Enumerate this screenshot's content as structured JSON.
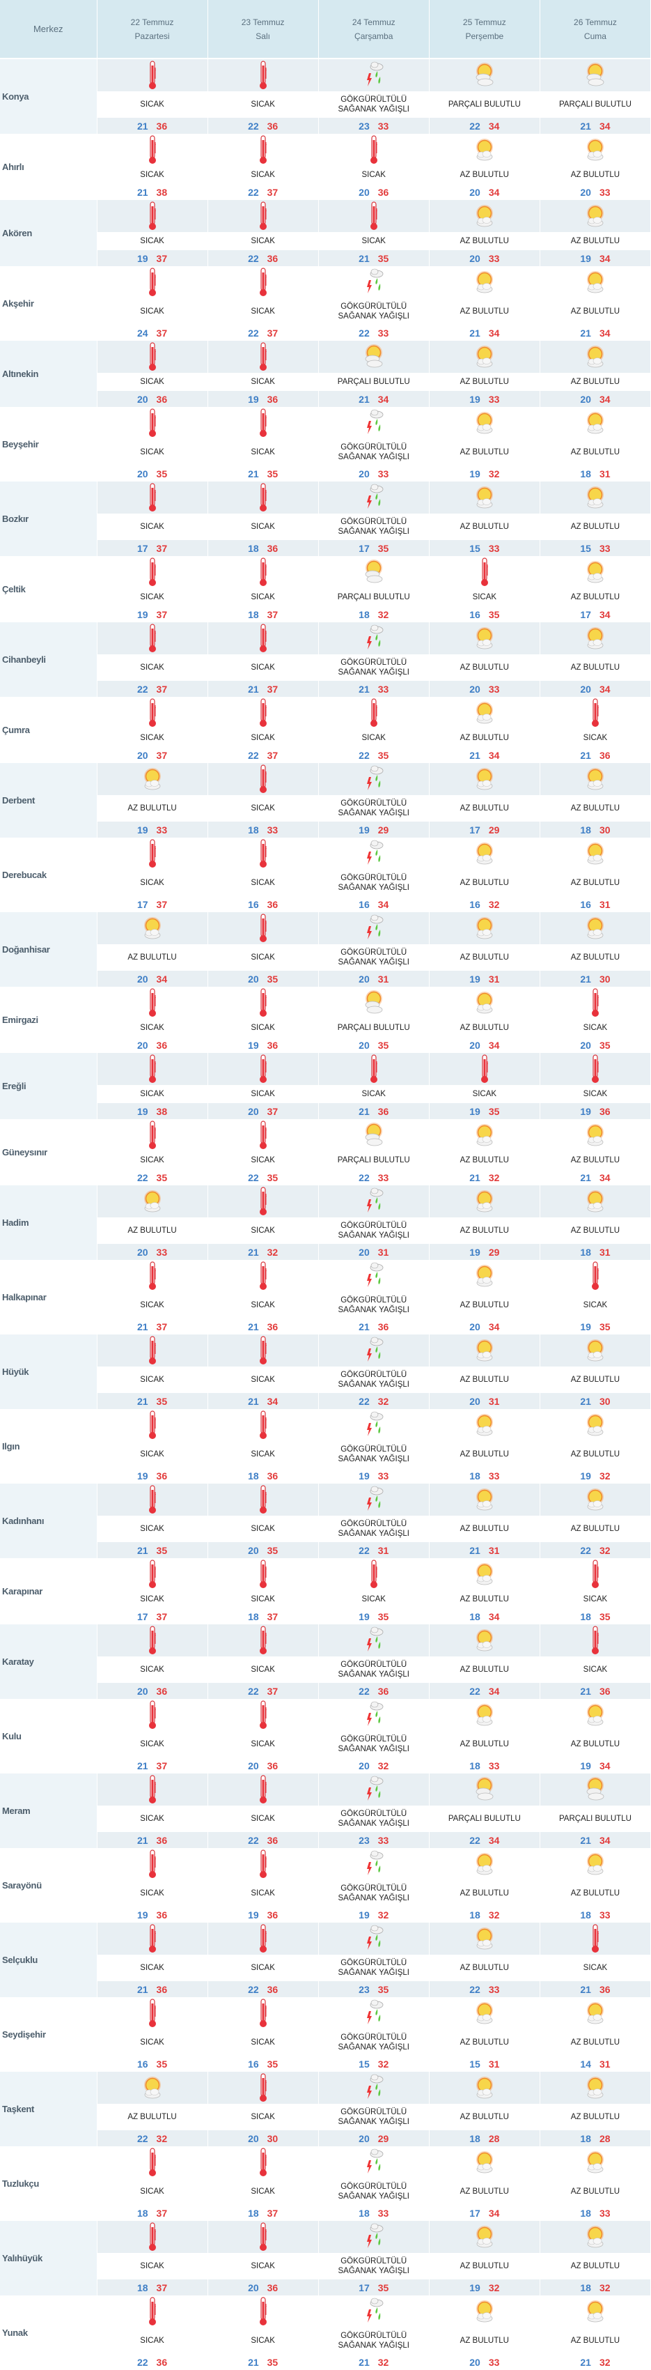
{
  "header": {
    "merkez": "Merkez",
    "days": [
      {
        "date": "22 Temmuz",
        "weekday": "Pazartesi"
      },
      {
        "date": "23 Temmuz",
        "weekday": "Salı"
      },
      {
        "date": "24 Temmuz",
        "weekday": "Çarşamba"
      },
      {
        "date": "25 Temmuz",
        "weekday": "Perşembe"
      },
      {
        "date": "26 Temmuz",
        "weekday": "Cuma"
      }
    ]
  },
  "conditions": {
    "S": {
      "label": "SICAK",
      "icon": "thermometer-icon"
    },
    "A": {
      "label": "AZ BULUTLU",
      "icon": "sun-cloud-icon"
    },
    "P": {
      "label": "PARÇALI BULUTLU",
      "icon": "partly-cloudy-icon"
    },
    "G": {
      "label": "GÖKGÜRÜLTÜLÜ SAĞANAK YAĞIŞLI",
      "icon": "thunderstorm-icon"
    }
  },
  "colors": {
    "min_temp": "#3f7fc6",
    "max_temp": "#e23b3b",
    "header_bg": "#d6e9f0",
    "row_shade": "#e8eff3"
  },
  "rows": [
    {
      "name": "Konya",
      "days": [
        [
          "S",
          21,
          36
        ],
        [
          "S",
          22,
          36
        ],
        [
          "G",
          23,
          33
        ],
        [
          "P",
          22,
          34
        ],
        [
          "P",
          21,
          34
        ]
      ]
    },
    {
      "name": "Ahırlı",
      "days": [
        [
          "S",
          21,
          38
        ],
        [
          "S",
          22,
          37
        ],
        [
          "S",
          20,
          36
        ],
        [
          "A",
          20,
          34
        ],
        [
          "A",
          20,
          33
        ]
      ]
    },
    {
      "name": "Akören",
      "days": [
        [
          "S",
          19,
          37
        ],
        [
          "S",
          22,
          36
        ],
        [
          "S",
          21,
          35
        ],
        [
          "A",
          20,
          33
        ],
        [
          "A",
          19,
          34
        ]
      ]
    },
    {
      "name": "Akşehir",
      "days": [
        [
          "S",
          24,
          37
        ],
        [
          "S",
          22,
          37
        ],
        [
          "G",
          22,
          33
        ],
        [
          "A",
          21,
          34
        ],
        [
          "A",
          21,
          34
        ]
      ]
    },
    {
      "name": "Altınekin",
      "days": [
        [
          "S",
          20,
          36
        ],
        [
          "S",
          19,
          36
        ],
        [
          "P",
          21,
          34
        ],
        [
          "A",
          19,
          33
        ],
        [
          "A",
          20,
          34
        ]
      ]
    },
    {
      "name": "Beyşehir",
      "days": [
        [
          "S",
          20,
          35
        ],
        [
          "S",
          21,
          35
        ],
        [
          "G",
          20,
          33
        ],
        [
          "A",
          19,
          32
        ],
        [
          "A",
          18,
          31
        ]
      ]
    },
    {
      "name": "Bozkır",
      "days": [
        [
          "S",
          17,
          37
        ],
        [
          "S",
          18,
          36
        ],
        [
          "G",
          17,
          35
        ],
        [
          "A",
          15,
          33
        ],
        [
          "A",
          15,
          33
        ]
      ]
    },
    {
      "name": "Çeltik",
      "days": [
        [
          "S",
          19,
          37
        ],
        [
          "S",
          18,
          37
        ],
        [
          "P",
          18,
          32
        ],
        [
          "S",
          16,
          35
        ],
        [
          "A",
          17,
          34
        ]
      ]
    },
    {
      "name": "Cihanbeyli",
      "days": [
        [
          "S",
          22,
          37
        ],
        [
          "S",
          21,
          37
        ],
        [
          "G",
          21,
          33
        ],
        [
          "A",
          20,
          33
        ],
        [
          "A",
          20,
          34
        ]
      ]
    },
    {
      "name": "Çumra",
      "days": [
        [
          "S",
          20,
          37
        ],
        [
          "S",
          22,
          37
        ],
        [
          "S",
          22,
          35
        ],
        [
          "A",
          21,
          34
        ],
        [
          "S",
          21,
          36
        ]
      ]
    },
    {
      "name": "Derbent",
      "days": [
        [
          "A",
          19,
          33
        ],
        [
          "S",
          18,
          33
        ],
        [
          "G",
          19,
          29
        ],
        [
          "A",
          17,
          29
        ],
        [
          "A",
          18,
          30
        ]
      ]
    },
    {
      "name": "Derebucak",
      "days": [
        [
          "S",
          17,
          37
        ],
        [
          "S",
          16,
          36
        ],
        [
          "G",
          16,
          34
        ],
        [
          "A",
          16,
          32
        ],
        [
          "A",
          16,
          31
        ]
      ]
    },
    {
      "name": "Doğanhisar",
      "days": [
        [
          "A",
          20,
          34
        ],
        [
          "S",
          20,
          35
        ],
        [
          "G",
          20,
          31
        ],
        [
          "A",
          19,
          31
        ],
        [
          "A",
          21,
          30
        ]
      ]
    },
    {
      "name": "Emirgazi",
      "days": [
        [
          "S",
          20,
          36
        ],
        [
          "S",
          19,
          36
        ],
        [
          "P",
          20,
          35
        ],
        [
          "A",
          20,
          34
        ],
        [
          "S",
          20,
          35
        ]
      ]
    },
    {
      "name": "Ereğli",
      "days": [
        [
          "S",
          19,
          38
        ],
        [
          "S",
          20,
          37
        ],
        [
          "S",
          21,
          36
        ],
        [
          "S",
          19,
          35
        ],
        [
          "S",
          19,
          36
        ]
      ]
    },
    {
      "name": "Güneysınır",
      "days": [
        [
          "S",
          22,
          35
        ],
        [
          "S",
          22,
          35
        ],
        [
          "P",
          22,
          33
        ],
        [
          "A",
          21,
          32
        ],
        [
          "A",
          21,
          34
        ]
      ]
    },
    {
      "name": "Hadim",
      "days": [
        [
          "A",
          20,
          33
        ],
        [
          "S",
          21,
          32
        ],
        [
          "G",
          20,
          31
        ],
        [
          "A",
          19,
          29
        ],
        [
          "A",
          18,
          31
        ]
      ]
    },
    {
      "name": "Halkapınar",
      "days": [
        [
          "S",
          21,
          37
        ],
        [
          "S",
          21,
          36
        ],
        [
          "G",
          21,
          36
        ],
        [
          "A",
          20,
          34
        ],
        [
          "S",
          19,
          35
        ]
      ]
    },
    {
      "name": "Hüyük",
      "days": [
        [
          "S",
          21,
          35
        ],
        [
          "S",
          21,
          34
        ],
        [
          "G",
          22,
          32
        ],
        [
          "A",
          20,
          31
        ],
        [
          "A",
          21,
          30
        ]
      ]
    },
    {
      "name": "Ilgın",
      "days": [
        [
          "S",
          19,
          36
        ],
        [
          "S",
          18,
          36
        ],
        [
          "G",
          19,
          33
        ],
        [
          "A",
          18,
          33
        ],
        [
          "A",
          19,
          32
        ]
      ]
    },
    {
      "name": "Kadınhanı",
      "days": [
        [
          "S",
          21,
          35
        ],
        [
          "S",
          20,
          35
        ],
        [
          "G",
          22,
          31
        ],
        [
          "A",
          21,
          31
        ],
        [
          "A",
          22,
          32
        ]
      ]
    },
    {
      "name": "Karapınar",
      "days": [
        [
          "S",
          17,
          37
        ],
        [
          "S",
          18,
          37
        ],
        [
          "S",
          19,
          35
        ],
        [
          "A",
          18,
          34
        ],
        [
          "S",
          18,
          35
        ]
      ]
    },
    {
      "name": "Karatay",
      "days": [
        [
          "S",
          20,
          36
        ],
        [
          "S",
          22,
          37
        ],
        [
          "G",
          22,
          36
        ],
        [
          "A",
          22,
          34
        ],
        [
          "S",
          21,
          36
        ]
      ]
    },
    {
      "name": "Kulu",
      "days": [
        [
          "S",
          21,
          37
        ],
        [
          "S",
          20,
          36
        ],
        [
          "G",
          20,
          32
        ],
        [
          "A",
          18,
          33
        ],
        [
          "A",
          19,
          34
        ]
      ]
    },
    {
      "name": "Meram",
      "days": [
        [
          "S",
          21,
          36
        ],
        [
          "S",
          22,
          36
        ],
        [
          "G",
          23,
          33
        ],
        [
          "P",
          22,
          34
        ],
        [
          "P",
          21,
          34
        ]
      ]
    },
    {
      "name": "Sarayönü",
      "days": [
        [
          "S",
          19,
          36
        ],
        [
          "S",
          19,
          36
        ],
        [
          "G",
          19,
          32
        ],
        [
          "A",
          18,
          32
        ],
        [
          "A",
          18,
          33
        ]
      ]
    },
    {
      "name": "Selçuklu",
      "days": [
        [
          "S",
          21,
          36
        ],
        [
          "S",
          22,
          36
        ],
        [
          "G",
          23,
          35
        ],
        [
          "A",
          22,
          33
        ],
        [
          "S",
          21,
          36
        ]
      ]
    },
    {
      "name": "Seydişehir",
      "days": [
        [
          "S",
          16,
          35
        ],
        [
          "S",
          16,
          35
        ],
        [
          "G",
          15,
          32
        ],
        [
          "A",
          15,
          31
        ],
        [
          "A",
          14,
          31
        ]
      ]
    },
    {
      "name": "Taşkent",
      "days": [
        [
          "A",
          22,
          32
        ],
        [
          "S",
          20,
          30
        ],
        [
          "G",
          20,
          29
        ],
        [
          "A",
          18,
          28
        ],
        [
          "A",
          18,
          28
        ]
      ]
    },
    {
      "name": "Tuzlukçu",
      "days": [
        [
          "S",
          18,
          37
        ],
        [
          "S",
          18,
          37
        ],
        [
          "G",
          18,
          33
        ],
        [
          "A",
          17,
          34
        ],
        [
          "A",
          18,
          33
        ]
      ]
    },
    {
      "name": "Yalıhüyük",
      "days": [
        [
          "S",
          18,
          37
        ],
        [
          "S",
          20,
          36
        ],
        [
          "G",
          17,
          35
        ],
        [
          "A",
          19,
          32
        ],
        [
          "A",
          18,
          32
        ]
      ]
    },
    {
      "name": "Yunak",
      "days": [
        [
          "S",
          22,
          36
        ],
        [
          "S",
          21,
          35
        ],
        [
          "G",
          21,
          32
        ],
        [
          "A",
          20,
          33
        ],
        [
          "A",
          21,
          32
        ]
      ]
    }
  ]
}
